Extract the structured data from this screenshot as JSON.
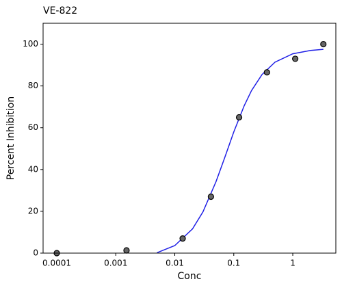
{
  "chart_data": {
    "type": "scatter",
    "title": "VE-822",
    "x_label": "Conc",
    "y_label": "Percent Inhibition",
    "xscale": "log",
    "xlim": [
      5.86e-05,
      5.37
    ],
    "xticks": [
      0.0001,
      0.001,
      0.01,
      0.1,
      1
    ],
    "ylim": [
      0,
      110
    ],
    "yticks": [
      0,
      20,
      40,
      60,
      80,
      100
    ],
    "series": [
      {
        "type": "scatter",
        "color": "#666666",
        "x": [
          0.0001,
          0.00152,
          0.0136,
          0.041,
          0.123,
          0.365,
          1.1,
          3.3
        ],
        "values": [
          0,
          1.3,
          7,
          27,
          65,
          86.5,
          93,
          100
        ]
      },
      {
        "type": "line",
        "color": "#1f1fe6",
        "x": [
          0.005,
          0.01,
          0.02,
          0.03,
          0.05,
          0.07,
          0.1,
          0.15,
          0.2,
          0.3,
          0.5,
          1,
          2,
          3.3
        ],
        "values": [
          0.2,
          3.6,
          11.6,
          19.7,
          34.2,
          45.6,
          58.0,
          70.5,
          77.8,
          85.4,
          91.4,
          95.4,
          97.0,
          97.5
        ]
      }
    ]
  }
}
